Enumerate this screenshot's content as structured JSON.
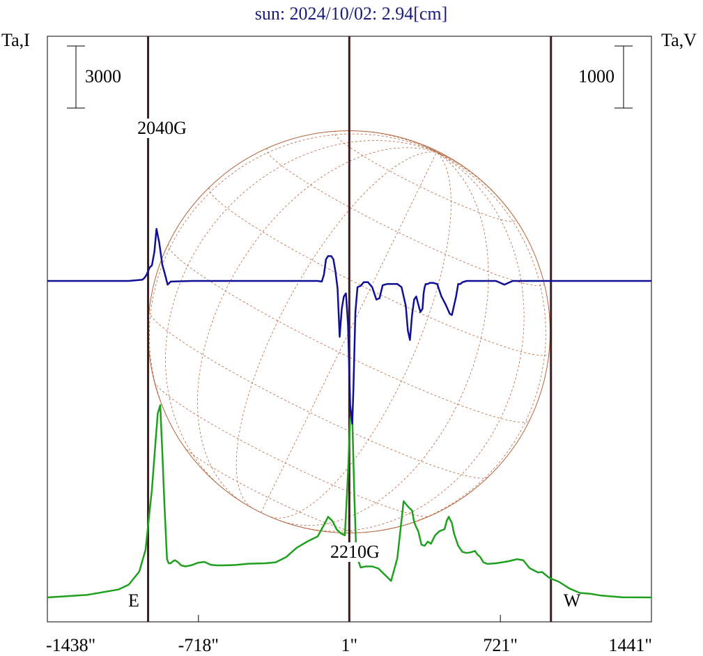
{
  "chart_data": {
    "type": "line",
    "title": "sun: 2024/10/02: 2.94[cm]",
    "left_axis_label": "Ta,I",
    "right_axis_label": "Ta,V",
    "left_scale_bar": "3000",
    "right_scale_bar": "1000",
    "x_ticks": [
      "-1438\"",
      "-718\"",
      "1\"",
      "721\"",
      "1441\""
    ],
    "x_tick_values": [
      -1438,
      -718,
      1,
      721,
      1441
    ],
    "xlim": [
      -1438,
      1441
    ],
    "limb_labels": {
      "east": "E",
      "west": "W"
    },
    "vertical_markers": [
      {
        "x": -958,
        "label": "2040G",
        "label_position": "top"
      },
      {
        "x": 1,
        "label": "2210G",
        "label_position": "bottom"
      },
      {
        "x": 962,
        "label": "",
        "label_position": ""
      }
    ],
    "solar_disk": {
      "center_x": 0,
      "radius": 958
    },
    "series": [
      {
        "key": "I",
        "color": "#1ea01e",
        "scale": 3000,
        "x": [
          -1438,
          -1250,
          -1100,
          -1050,
          -1000,
          -970,
          -958,
          -940,
          -925,
          -912,
          -900,
          -890,
          -880,
          -868,
          -860,
          -850,
          -840,
          -830,
          -815,
          -800,
          -780,
          -750,
          -720,
          -690,
          -660,
          -630,
          -600,
          -570,
          -540,
          -480,
          -400,
          -350,
          -300,
          -250,
          -200,
          -150,
          -120,
          -100,
          -80,
          -60,
          -40,
          -30,
          -20,
          -5,
          5,
          15,
          25,
          35,
          45,
          55,
          80,
          110,
          140,
          170,
          200,
          230,
          260,
          280,
          300,
          310,
          320,
          330,
          345,
          360,
          375,
          390,
          410,
          430,
          455,
          465,
          475,
          490,
          500,
          520,
          540,
          560,
          580,
          600,
          610,
          625,
          640,
          660,
          700,
          760,
          800,
          830,
          860,
          900,
          920,
          950,
          960,
          1000,
          1050,
          1100,
          1150,
          1200,
          1300,
          1441
        ],
        "y": [
          0,
          120,
          380,
          620,
          1250,
          2300,
          3500,
          5200,
          7200,
          8900,
          9300,
          7000,
          4500,
          1850,
          1650,
          1650,
          1750,
          1800,
          1700,
          1550,
          1500,
          1560,
          1680,
          1720,
          1580,
          1550,
          1550,
          1560,
          1570,
          1630,
          1650,
          1700,
          1950,
          2400,
          2700,
          2950,
          3500,
          3900,
          3700,
          3300,
          3100,
          3050,
          3000,
          6000,
          8650,
          8700,
          4900,
          1850,
          1750,
          1450,
          1500,
          1500,
          1400,
          1100,
          800,
          1900,
          4650,
          4400,
          4200,
          3650,
          3400,
          3200,
          2550,
          2500,
          2700,
          2600,
          3000,
          3200,
          3300,
          3700,
          3900,
          3600,
          3100,
          2500,
          2200,
          2150,
          2180,
          2250,
          2100,
          1950,
          1700,
          1620,
          1650,
          1750,
          1850,
          1800,
          1420,
          1210,
          1230,
          980,
          920,
          760,
          430,
          220,
          180,
          90,
          10,
          0
        ]
      },
      {
        "key": "V",
        "color": "#101096",
        "scale": 1000,
        "x": [
          -1438,
          -1250,
          -1050,
          -985,
          -975,
          -965,
          -958,
          -950,
          -940,
          -928,
          -918,
          -905,
          -890,
          -880,
          -865,
          -850,
          -750,
          -600,
          -450,
          -250,
          -150,
          -130,
          -120,
          -110,
          -100,
          -85,
          -75,
          -65,
          -55,
          -45,
          -35,
          -25,
          -15,
          -5,
          5,
          15,
          20,
          30,
          40,
          55,
          70,
          90,
          110,
          130,
          145,
          160,
          180,
          230,
          250,
          270,
          280,
          290,
          300,
          310,
          320,
          330,
          340,
          350,
          355,
          360,
          365,
          375,
          385,
          400,
          420,
          440,
          460,
          480,
          490,
          500,
          510,
          520,
          530,
          540,
          560,
          600,
          640,
          680,
          700,
          740,
          780,
          820,
          860,
          960,
          1050,
          1150,
          1300,
          1441
        ],
        "y": [
          0,
          0,
          0,
          20,
          50,
          100,
          160,
          220,
          250,
          470,
          840,
          620,
          260,
          140,
          -60,
          -10,
          0,
          0,
          0,
          0,
          0,
          -10,
          100,
          350,
          400,
          400,
          350,
          150,
          -120,
          -900,
          -450,
          -250,
          -200,
          -700,
          -2000,
          -2300,
          -1800,
          -500,
          -100,
          -80,
          -20,
          -20,
          -100,
          -300,
          -280,
          -70,
          -50,
          -50,
          -100,
          -400,
          -800,
          -950,
          -550,
          -300,
          -250,
          -380,
          -500,
          -450,
          -200,
          -100,
          -50,
          -50,
          -30,
          -30,
          -50,
          -250,
          -380,
          -530,
          -550,
          -400,
          -250,
          -50,
          -50,
          -20,
          0,
          0,
          0,
          0,
          0,
          -60,
          0,
          0,
          0,
          0,
          0,
          0,
          0,
          0
        ]
      }
    ]
  }
}
